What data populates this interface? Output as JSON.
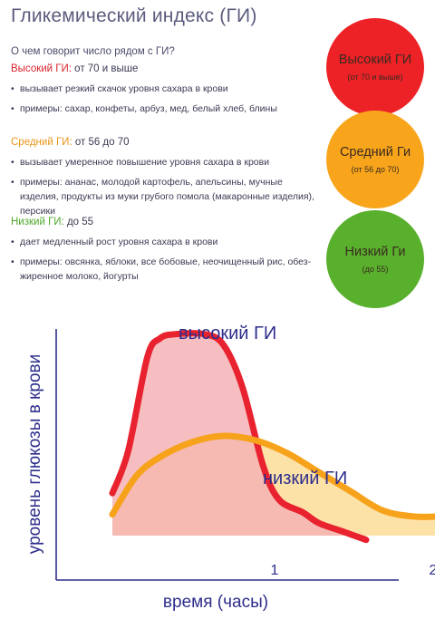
{
  "page": {
    "title": "Гликемический индекс (ГИ)",
    "question": "О чем говорит число рядом с ГИ?"
  },
  "colors": {
    "high": "#e8222e",
    "medium": "#f7a21b",
    "low": "#5aae2a",
    "axis": "#2e2e8c"
  },
  "sections": [
    {
      "label": "Высокий ГИ:",
      "range": " от 70 и выше",
      "color": "#d8242b",
      "bullets": [
        "вызывает резкий скачок уровня сахара в крови",
        "примеры: сахар, конфеты, арбуз, мед, белый хлеб, блины"
      ]
    },
    {
      "label": "Средний ГИ:",
      "range": " от 56 до 70",
      "color": "#e8961a",
      "bullets": [
        "вызывает умеренное повышение уровня сахара в крови",
        "примеры: ананас, молодой картофель, апельсины, мучные изделия, продукты из муки грубого помола (макаронные изделия), персики"
      ]
    },
    {
      "label": "Низкий ГИ:",
      "range": " до 55",
      "color": "#4fa82b",
      "bullets": [
        "дает медленный рост уровня сахара в крови",
        "примеры: овсянка, яблоки, все бобовые, неочищенный рис, обез-жиренное молоко, йогурты"
      ]
    }
  ],
  "circles": [
    {
      "title": "Высокий ГИ",
      "sub": "(от 70 и выше)",
      "color": "#ec2227"
    },
    {
      "title": "Средний Ги",
      "sub": "(от 56 до 70)",
      "color": "#f8a51c"
    },
    {
      "title": "Низкий Ги",
      "sub": "(до 55)",
      "color": "#59b02c"
    }
  ],
  "chart_data": {
    "type": "area",
    "xlabel": "время (часы)",
    "ylabel": "уровень глюкозы в крови",
    "xlim": [
      0,
      2.3
    ],
    "ylim": [
      0,
      1
    ],
    "x_ticks": [
      "1",
      "2"
    ],
    "x_tick_values": [
      1,
      2
    ],
    "grid": false,
    "series": [
      {
        "name": "высокий ГИ",
        "color": "#e8222e",
        "fill": "#f5b3b5",
        "x": [
          0,
          0.1,
          0.22,
          0.3,
          0.4,
          0.58,
          0.7,
          0.82,
          0.95,
          1.05,
          1.2,
          1.3,
          1.45,
          1.6
        ],
        "y": [
          0.2,
          0.4,
          0.84,
          0.93,
          0.95,
          0.95,
          0.9,
          0.7,
          0.33,
          0.17,
          0.11,
          0.06,
          0.02,
          -0.02
        ]
      },
      {
        "name": "низкий ГИ",
        "color": "#f7a21b",
        "fill": "#fde2a8",
        "x": [
          0,
          0.15,
          0.3,
          0.5,
          0.7,
          0.9,
          1.1,
          1.3,
          1.5,
          1.7,
          1.9,
          2.1,
          2.3
        ],
        "y": [
          0.1,
          0.28,
          0.37,
          0.44,
          0.47,
          0.45,
          0.39,
          0.3,
          0.21,
          0.12,
          0.09,
          0.09,
          0.09
        ]
      }
    ]
  }
}
